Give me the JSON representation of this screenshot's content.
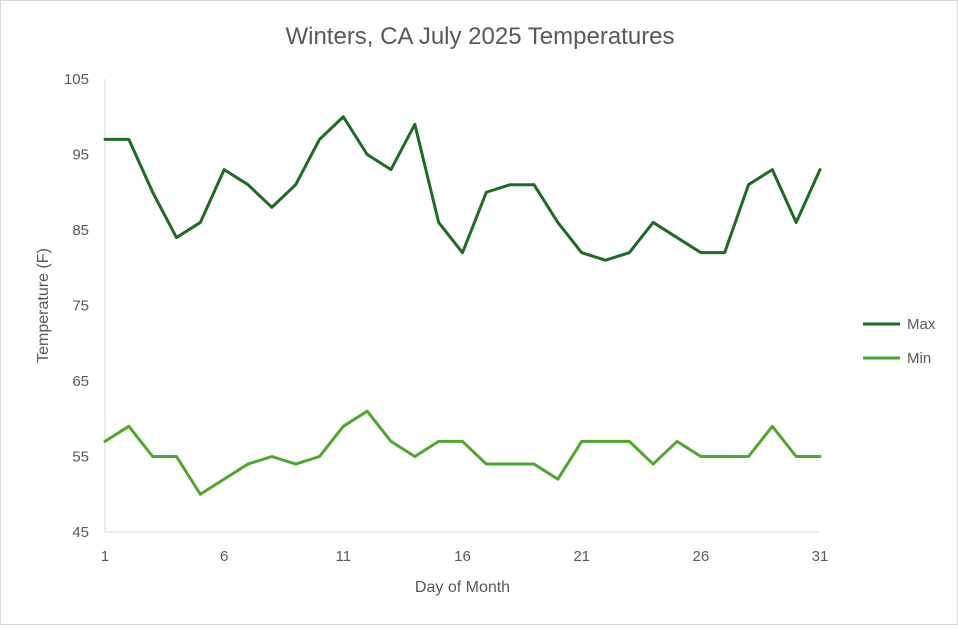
{
  "chart_data": {
    "type": "line",
    "title": "Winters, CA July 2025 Temperatures",
    "xlabel": "Day of Month",
    "ylabel": "Temperature (F)",
    "x": [
      1,
      2,
      3,
      4,
      5,
      6,
      7,
      8,
      9,
      10,
      11,
      12,
      13,
      14,
      15,
      16,
      17,
      18,
      19,
      20,
      21,
      22,
      23,
      24,
      25,
      26,
      27,
      28,
      29,
      30,
      31
    ],
    "xticks": [
      1,
      6,
      11,
      16,
      21,
      26,
      31
    ],
    "xlim": [
      1,
      31
    ],
    "ylim": [
      45,
      105
    ],
    "yticks": [
      45,
      55,
      65,
      75,
      85,
      95,
      105
    ],
    "grid": false,
    "legend_position": "right",
    "series": [
      {
        "name": "Max",
        "color": "#1e6b23",
        "values": [
          97,
          97,
          90,
          84,
          86,
          93,
          91,
          88,
          91,
          97,
          100,
          95,
          93,
          99,
          86,
          82,
          90,
          91,
          91,
          86,
          82,
          81,
          82,
          86,
          84,
          82,
          82,
          91,
          93,
          86,
          93
        ]
      },
      {
        "name": "Min",
        "color": "#4ea72e",
        "values": [
          57,
          59,
          55,
          55,
          50,
          52,
          54,
          55,
          54,
          55,
          59,
          61,
          57,
          55,
          57,
          57,
          54,
          54,
          54,
          52,
          57,
          57,
          57,
          54,
          57,
          55,
          55,
          55,
          59,
          55,
          55
        ]
      }
    ]
  }
}
